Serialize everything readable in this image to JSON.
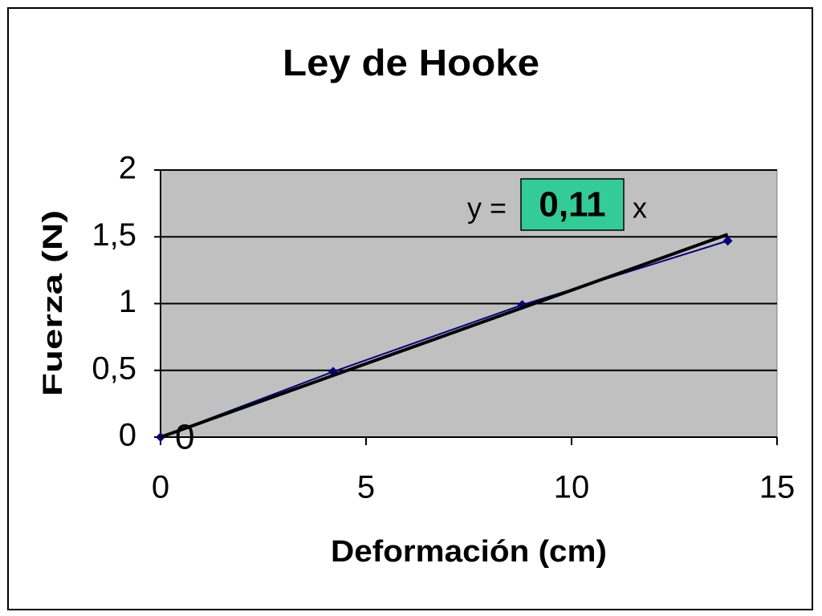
{
  "chart_data": {
    "type": "scatter-line",
    "title": "Ley de Hooke",
    "x_label": "Deformación (cm)",
    "y_label": "Fuerza (N)",
    "x": [
      0,
      4.2,
      8.8,
      13.8
    ],
    "series": [
      {
        "color": "#000080",
        "values": [
          0,
          0.49,
          0.99,
          1.47
        ]
      }
    ],
    "trendline": {
      "color": "#000000",
      "prefix": "y =",
      "slope": 0.11,
      "slope_label": "0,11",
      "suffix": "x",
      "intercept": 0,
      "highlight": "#33cc99"
    },
    "xlim": [
      0,
      15
    ],
    "xticks": [
      0,
      5,
      10,
      15
    ],
    "ylim": [
      0,
      2
    ],
    "yticks": [
      0,
      {
        "value": 0.5,
        "label": "0,5"
      },
      1,
      {
        "value": 1.5,
        "label": "1,5"
      },
      2
    ],
    "grid": true,
    "plot_background": "#c0c0c0"
  }
}
